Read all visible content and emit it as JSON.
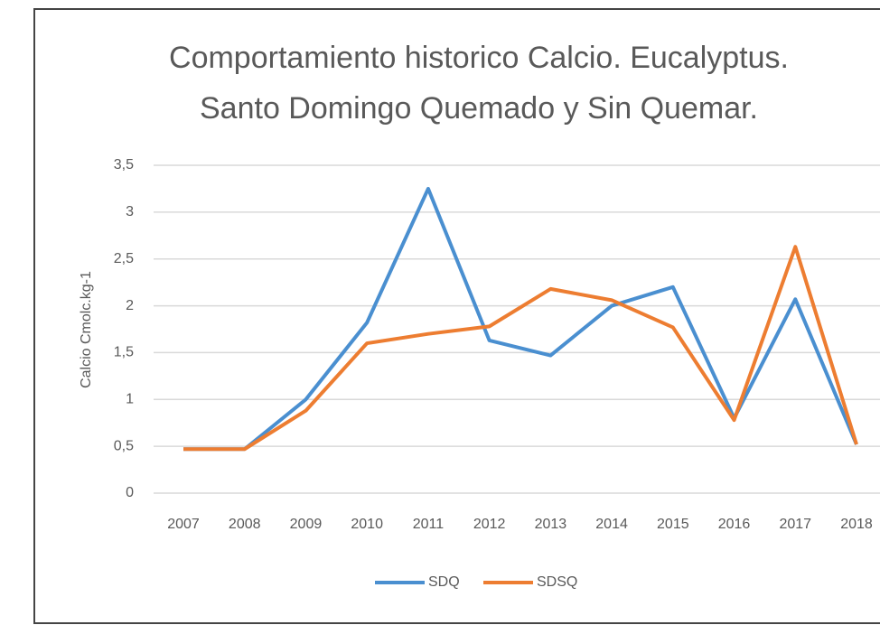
{
  "chart_data": {
    "type": "line",
    "title": [
      "Comportamiento historico Calcio. Eucalyptus.",
      "Santo Domingo Quemado y Sin Quemar."
    ],
    "y_label": "Calcio Cmolc.kg-1",
    "categories": [
      "2007",
      "2008",
      "2009",
      "2010",
      "2011",
      "2012",
      "2013",
      "2014",
      "2015",
      "2016",
      "2017",
      "2018"
    ],
    "series": [
      {
        "name": "SDQ",
        "color": "#4a8fd0",
        "values": [
          0.47,
          0.47,
          1.0,
          1.82,
          3.25,
          1.63,
          1.47,
          2.0,
          2.2,
          0.8,
          2.07,
          0.52
        ]
      },
      {
        "name": "SDSQ",
        "color": "#ed7d31",
        "values": [
          0.47,
          0.47,
          0.88,
          1.6,
          1.7,
          1.78,
          2.18,
          2.06,
          1.77,
          0.78,
          2.63,
          0.52
        ]
      }
    ],
    "ylim": [
      0,
      3.5
    ],
    "yticks": [
      0,
      {
        "value": 0.5,
        "label": "0,5"
      },
      1,
      {
        "value": 1.5,
        "label": "1,5"
      },
      2,
      {
        "value": 2.5,
        "label": "2,5"
      },
      3,
      {
        "value": 3.5,
        "label": "3,5"
      }
    ],
    "grid": true,
    "legend": "bottom"
  }
}
